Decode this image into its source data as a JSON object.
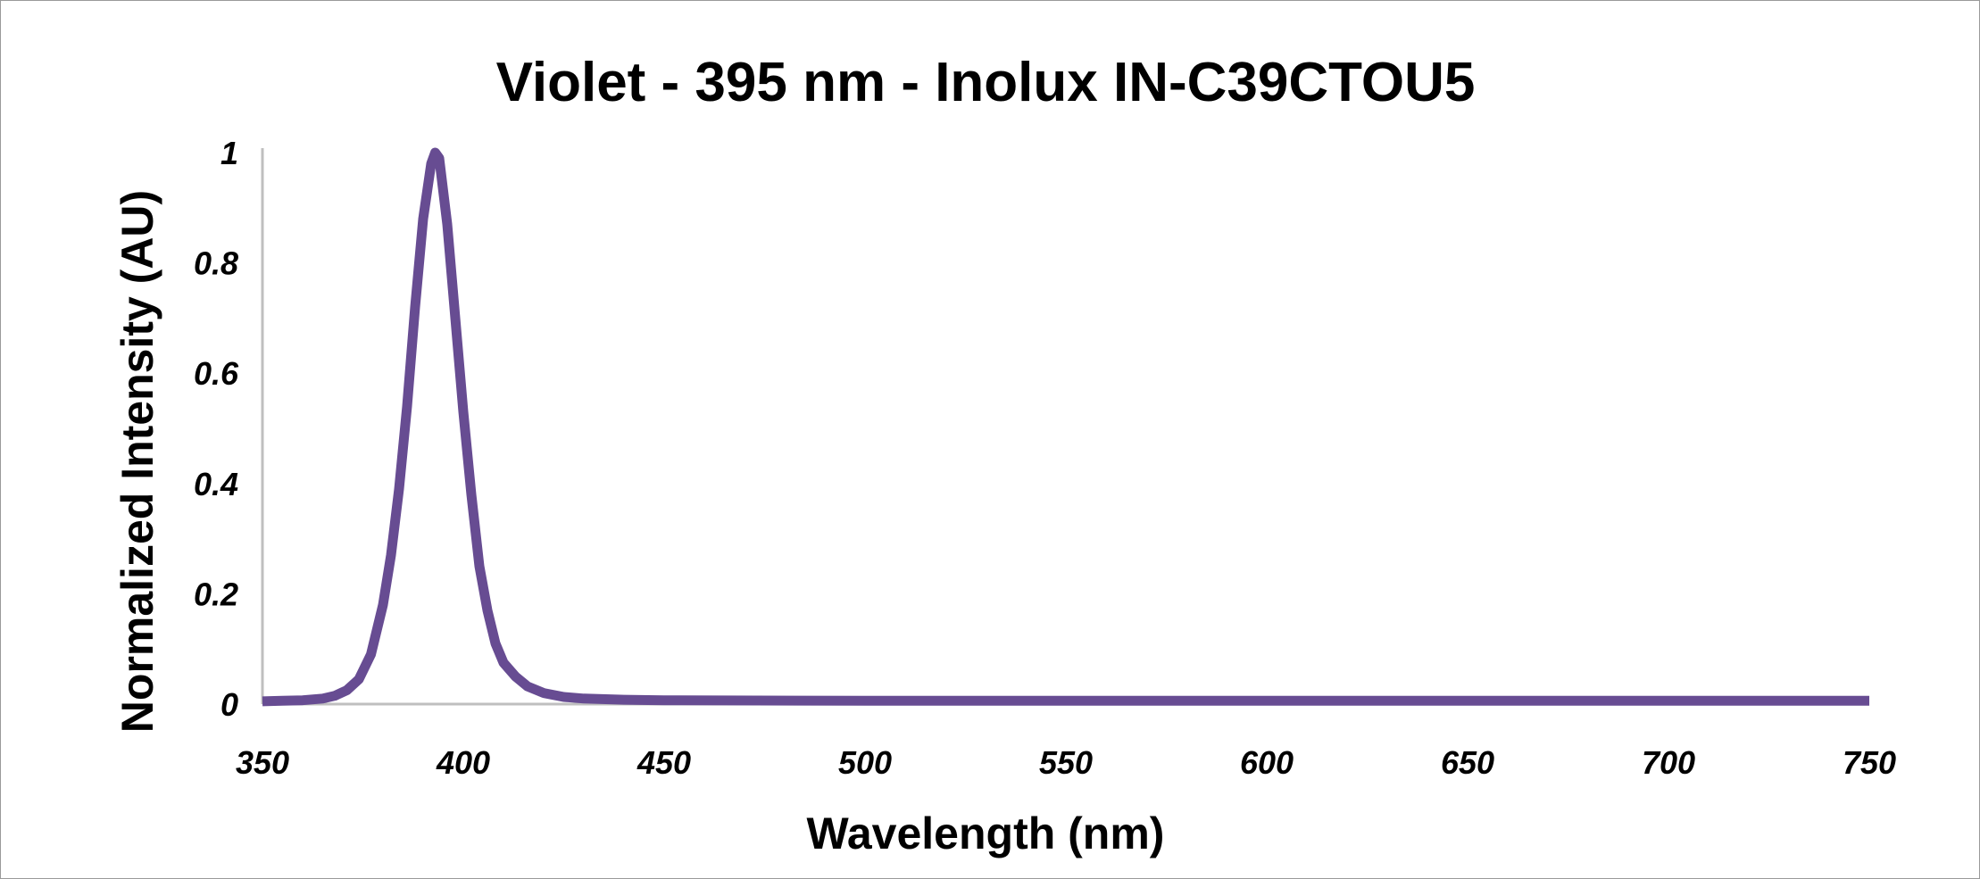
{
  "chart_data": {
    "type": "line",
    "title": "Violet - 395 nm - Inolux IN-C39CTOU5",
    "xlabel": "Wavelength (nm)",
    "ylabel": "Normalized Intensity (AU)",
    "xlim": [
      350,
      750
    ],
    "ylim": [
      0,
      1
    ],
    "xticks": [
      "350",
      "400",
      "450",
      "500",
      "550",
      "600",
      "650",
      "700",
      "750"
    ],
    "yticks": [
      "0",
      "0.2",
      "0.4",
      "0.6",
      "0.8",
      "1"
    ],
    "grid": false,
    "legend": "none",
    "colors": {
      "line": "#674C92",
      "axis": "#BFBFBF",
      "frame": "#9A9A9A"
    },
    "series": [
      {
        "x": [
          350,
          355,
          360,
          365,
          368,
          371,
          374,
          377,
          380,
          382,
          384,
          386,
          388,
          390,
          392,
          393,
          394,
          396,
          398,
          400,
          402,
          404,
          406,
          408,
          410,
          413,
          416,
          420,
          425,
          430,
          440,
          450,
          500,
          550,
          600,
          650,
          700,
          750
        ],
        "y": [
          0.005,
          0.006,
          0.007,
          0.01,
          0.015,
          0.025,
          0.045,
          0.09,
          0.18,
          0.27,
          0.39,
          0.54,
          0.72,
          0.88,
          0.98,
          1.0,
          0.99,
          0.87,
          0.7,
          0.53,
          0.38,
          0.25,
          0.17,
          0.11,
          0.075,
          0.05,
          0.032,
          0.02,
          0.013,
          0.01,
          0.008,
          0.007,
          0.006,
          0.006,
          0.006,
          0.006,
          0.006,
          0.006
        ]
      }
    ]
  }
}
